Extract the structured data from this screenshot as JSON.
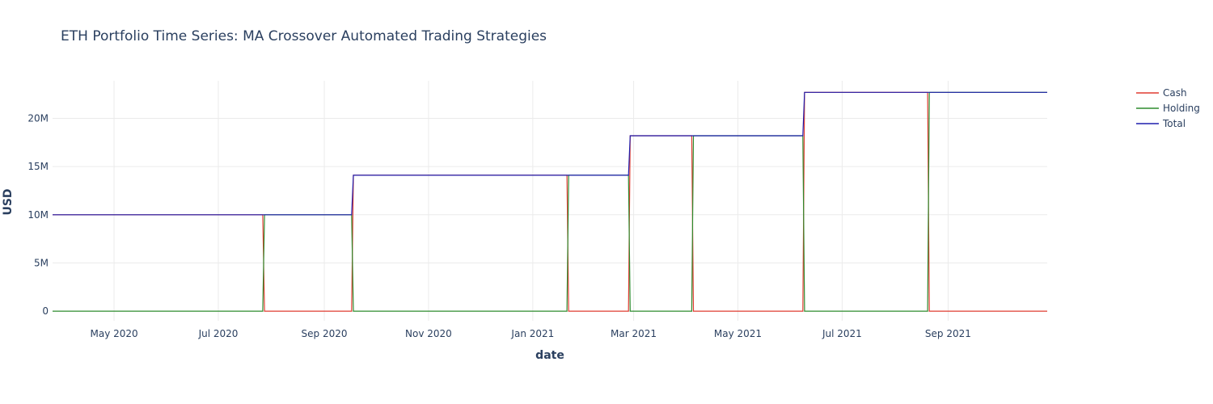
{
  "chart_data": {
    "type": "line",
    "title": "ETH Portfolio Time Series: MA Crossover Automated Trading Strategies",
    "xlabel": "date",
    "ylabel": "USD",
    "xlim": [
      "2020-03-26",
      "2021-10-29"
    ],
    "ylim": [
      -1000000,
      23900000
    ],
    "x_ticks": [
      {
        "date": "2020-05-01",
        "label": "May 2020"
      },
      {
        "date": "2020-07-01",
        "label": "Jul 2020"
      },
      {
        "date": "2020-09-01",
        "label": "Sep 2020"
      },
      {
        "date": "2020-11-01",
        "label": "Nov 2020"
      },
      {
        "date": "2021-01-01",
        "label": "Jan 2021"
      },
      {
        "date": "2021-03-01",
        "label": "Mar 2021"
      },
      {
        "date": "2021-05-01",
        "label": "May 2021"
      },
      {
        "date": "2021-07-01",
        "label": "Jul 2021"
      },
      {
        "date": "2021-09-01",
        "label": "Sep 2021"
      }
    ],
    "y_ticks": [
      {
        "value": 0,
        "label": "0"
      },
      {
        "value": 5000000,
        "label": "5M"
      },
      {
        "value": 10000000,
        "label": "10M"
      },
      {
        "value": 15000000,
        "label": "15M"
      },
      {
        "value": 20000000,
        "label": "20M"
      }
    ],
    "grid": true,
    "legend_position": "top-right",
    "series": [
      {
        "name": "Cash",
        "color": "#e03c31",
        "points": [
          [
            "2020-03-26",
            10000000
          ],
          [
            "2020-07-27",
            10000000
          ],
          [
            "2020-07-28",
            0
          ],
          [
            "2020-09-17",
            0
          ],
          [
            "2020-09-18",
            14100000
          ],
          [
            "2021-01-21",
            14100000
          ],
          [
            "2021-01-22",
            0
          ],
          [
            "2021-02-26",
            0
          ],
          [
            "2021-02-27",
            18200000
          ],
          [
            "2021-04-04",
            18200000
          ],
          [
            "2021-04-05",
            0
          ],
          [
            "2021-06-08",
            0
          ],
          [
            "2021-06-09",
            22700000
          ],
          [
            "2021-08-20",
            22700000
          ],
          [
            "2021-08-21",
            0
          ],
          [
            "2021-10-29",
            0
          ]
        ]
      },
      {
        "name": "Holding",
        "color": "#2e8b2e",
        "points": [
          [
            "2020-03-26",
            0
          ],
          [
            "2020-07-27",
            0
          ],
          [
            "2020-07-28",
            10000000
          ],
          [
            "2020-09-17",
            10000000
          ],
          [
            "2020-09-18",
            0
          ],
          [
            "2021-01-21",
            0
          ],
          [
            "2021-01-22",
            14100000
          ],
          [
            "2021-02-26",
            14100000
          ],
          [
            "2021-02-27",
            0
          ],
          [
            "2021-04-04",
            0
          ],
          [
            "2021-04-05",
            18200000
          ],
          [
            "2021-06-08",
            18200000
          ],
          [
            "2021-06-09",
            0
          ],
          [
            "2021-08-20",
            0
          ],
          [
            "2021-08-21",
            22700000
          ],
          [
            "2021-10-29",
            22700000
          ]
        ]
      },
      {
        "name": "Total",
        "color": "#1f1fae",
        "points": [
          [
            "2020-03-26",
            10000000
          ],
          [
            "2020-09-17",
            10000000
          ],
          [
            "2020-09-18",
            14100000
          ],
          [
            "2021-02-26",
            14100000
          ],
          [
            "2021-02-27",
            18200000
          ],
          [
            "2021-06-08",
            18200000
          ],
          [
            "2021-06-09",
            22700000
          ],
          [
            "2021-10-29",
            22700000
          ]
        ]
      }
    ]
  }
}
